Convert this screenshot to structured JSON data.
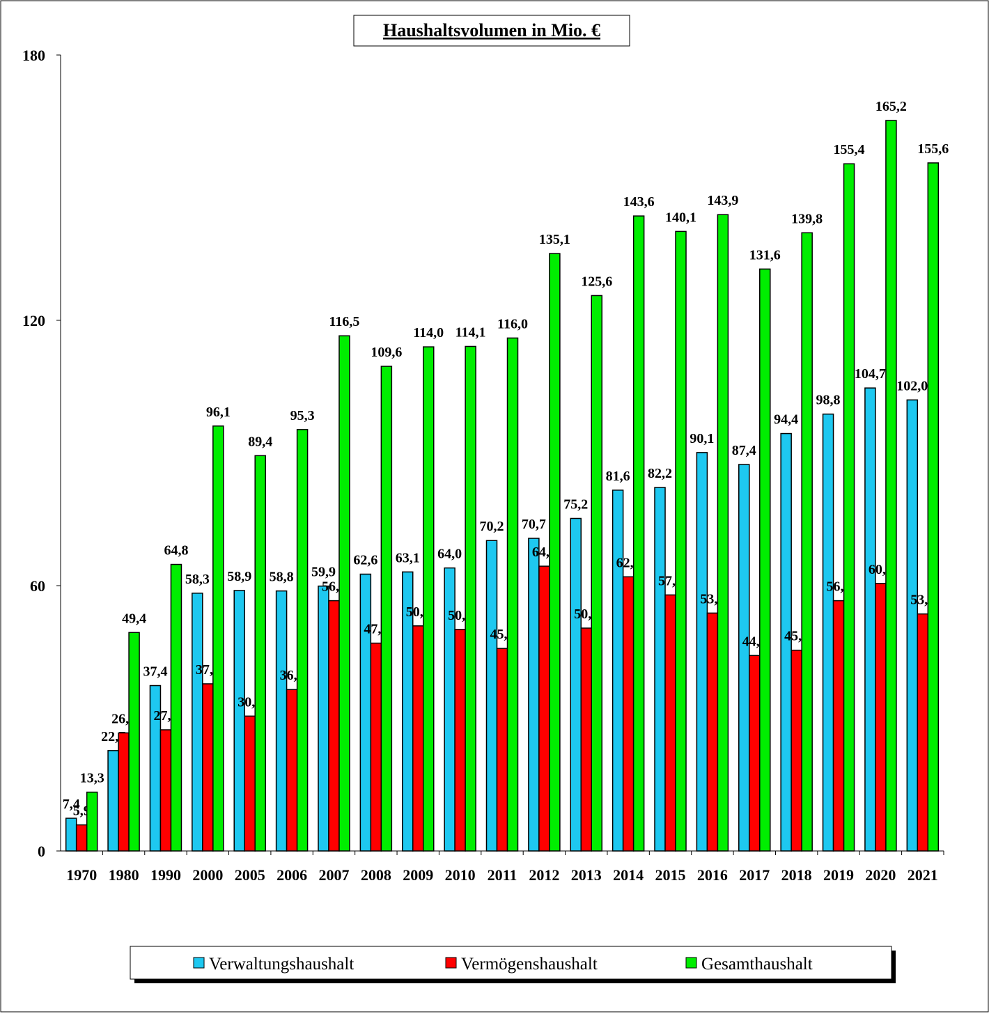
{
  "chart_data": {
    "type": "bar",
    "title": "Haushaltsvolumen in Mio. €",
    "categories": [
      "1970",
      "1980",
      "1990",
      "2000",
      "2005",
      "2006",
      "2007",
      "2008",
      "2009",
      "2010",
      "2011",
      "2012",
      "2013",
      "2014",
      "2015",
      "2016",
      "2017",
      "2018",
      "2019",
      "2020",
      "2021"
    ],
    "series": [
      {
        "name": "Verwaltungshaushalt",
        "color": "#1ec8f0",
        "values": [
          7.4,
          22.7,
          37.4,
          58.3,
          58.9,
          58.8,
          59.9,
          62.6,
          63.1,
          64.0,
          70.2,
          70.7,
          75.2,
          81.6,
          82.2,
          90.1,
          87.4,
          94.4,
          98.8,
          104.7,
          102.0
        ],
        "value_labels": [
          "7,4",
          "22,7",
          "37,4",
          "58,3",
          "58,9",
          "58,8",
          "59,9",
          "62,6",
          "63,1",
          "64,0",
          "70,2",
          "70,7",
          "75,2",
          "81,6",
          "82,2",
          "90,1",
          "87,4",
          "94,4",
          "98,8",
          "104,7",
          "102,0"
        ]
      },
      {
        "name": "Vermögenshaushalt",
        "color": "#ff0000",
        "values": [
          5.9,
          26.7,
          27.4,
          37.8,
          30.5,
          36.5,
          56.6,
          47.0,
          50.9,
          50.1,
          45.8,
          64.4,
          50.4,
          62.0,
          57.9,
          53.8,
          44.2,
          45.4,
          56.6,
          60.5,
          53.6
        ],
        "value_labels": [
          "5,9",
          "26,7",
          "27,4",
          "37,8",
          "30,5",
          "36,5",
          "56,6",
          "47,0",
          "50,9",
          "50,1",
          "45,8",
          "64,4",
          "50,4",
          "62,0",
          "57,9",
          "53,8",
          "44,2",
          "45,4",
          "56,6",
          "60,5",
          "53,6"
        ]
      },
      {
        "name": "Gesamthaushalt",
        "color": "#00ee00",
        "values": [
          13.3,
          49.4,
          64.8,
          96.1,
          89.4,
          95.3,
          116.5,
          109.6,
          114.0,
          114.1,
          116.0,
          135.1,
          125.6,
          143.6,
          140.1,
          143.9,
          131.6,
          139.8,
          155.4,
          165.2,
          155.6
        ],
        "value_labels": [
          "13,3",
          "49,4",
          "64,8",
          "96,1",
          "89,4",
          "95,3",
          "116,5",
          "109,6",
          "114,0",
          "114,1",
          "116,0",
          "135,1",
          "125,6",
          "143,6",
          "140,1",
          "143,9",
          "131,6",
          "139,8",
          "155,4",
          "165,2",
          "155,6"
        ]
      }
    ],
    "ylim": [
      0,
      180
    ],
    "yticks": [
      0,
      60,
      120,
      180
    ],
    "grid": false,
    "legend": "bottom"
  }
}
